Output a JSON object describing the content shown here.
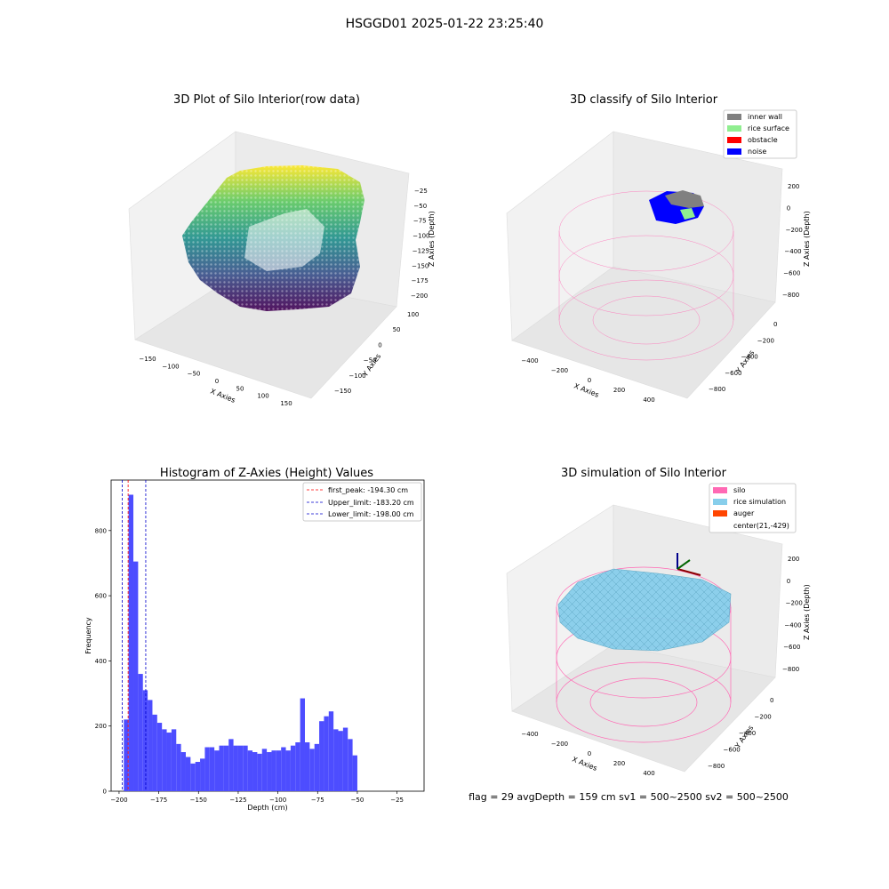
{
  "figure": {
    "suptitle": "HSGGD01 2025-01-22 23:25:40",
    "footer": "flag = 29  avgDepth = 159 cm  sv1 = 500~2500  sv2 = 500~2500"
  },
  "colors": {
    "hist_bar": "#4d4dff",
    "first_peak_line": "#ff0000",
    "limit_line": "#0000cc",
    "pane": "#f2f2f2",
    "silo_wire": "#ff69b4",
    "rice_surface": "#87ceeb",
    "inner_wall": "#808080",
    "rice_surface_class": "#90ee90",
    "obstacle": "#ff0000",
    "noise": "#0000ff",
    "auger": "#ff4500"
  },
  "chart_data": [
    {
      "type": "scatter",
      "title": "3D Plot of Silo Interior(row data)",
      "xlabel": "X Axies",
      "ylabel": "Y Axies",
      "zlabel": "Z Axies (Depth)",
      "xticks": [
        "−150",
        "−100",
        "−50",
        "0",
        "50",
        "100",
        "150"
      ],
      "yticks": [
        "100",
        "50",
        "0",
        "−50",
        "−100",
        "−150"
      ],
      "zticks": [
        "−25",
        "−50",
        "−75",
        "−100",
        "−125",
        "−150",
        "−175",
        "−200"
      ],
      "xlim": [
        -175,
        175
      ],
      "ylim": [
        -175,
        125
      ],
      "zlim": [
        -210,
        -10
      ],
      "colormap": "viridis"
    },
    {
      "type": "scatter",
      "title": "3D classify of Silo Interior",
      "xlabel": "X Axies",
      "ylabel": "Y Axies",
      "zlabel": "Z Axies (Depth)",
      "xticks": [
        "−400",
        "−200",
        "0",
        "200",
        "400"
      ],
      "yticks": [
        "0",
        "−200",
        "−400",
        "−600",
        "−800"
      ],
      "zticks": [
        "200",
        "0",
        "−200",
        "−400",
        "−600",
        "−800"
      ],
      "legend": [
        "inner wall",
        "rice surface",
        "obstacle",
        "noise"
      ],
      "legend_position": "top-right"
    },
    {
      "type": "bar",
      "title": "Histogram of Z-Axies (Height) Values",
      "xlabel": "Depth (cm)",
      "ylabel": "Frequency",
      "xlim": [
        -205,
        -8
      ],
      "ylim": [
        0,
        955
      ],
      "xticks": [
        "−200",
        "−175",
        "−150",
        "−125",
        "−100",
        "−75",
        "−50",
        "−25"
      ],
      "yticks": [
        "0",
        "200",
        "400",
        "600",
        "800"
      ],
      "bin_width": 3,
      "bin_start": -197,
      "values": [
        220,
        910,
        705,
        360,
        310,
        280,
        235,
        210,
        190,
        180,
        190,
        145,
        120,
        105,
        85,
        90,
        100,
        135,
        135,
        125,
        140,
        140,
        160,
        140,
        140,
        140,
        125,
        120,
        115,
        130,
        120,
        125,
        125,
        135,
        125,
        140,
        150,
        285,
        150,
        130,
        145,
        215,
        230,
        245,
        190,
        185,
        195,
        160,
        110
      ],
      "vlines": [
        {
          "label": "first_peak: -194.30 cm",
          "x": -194.3,
          "color": "#ff0000"
        },
        {
          "label": "Upper_limit: -183.20 cm",
          "x": -183.2,
          "color": "#0000cc"
        },
        {
          "label": "Lower_limit: -198.00 cm",
          "x": -198.0,
          "color": "#0000cc"
        }
      ],
      "legend_position": "top-right"
    },
    {
      "type": "scatter",
      "title": "3D simulation of Silo Interior",
      "xlabel": "X Axies",
      "ylabel": "Y Axies",
      "zlabel": "Z Axies (Depth)",
      "xticks": [
        "−400",
        "−200",
        "0",
        "200",
        "400"
      ],
      "yticks": [
        "0",
        "−200",
        "−400",
        "−600",
        "−800"
      ],
      "zticks": [
        "200",
        "0",
        "−200",
        "−400",
        "−600",
        "−800"
      ],
      "legend": [
        "silo",
        "rice simulation",
        "auger",
        "center(21,-429)"
      ],
      "legend_position": "top-right"
    }
  ]
}
